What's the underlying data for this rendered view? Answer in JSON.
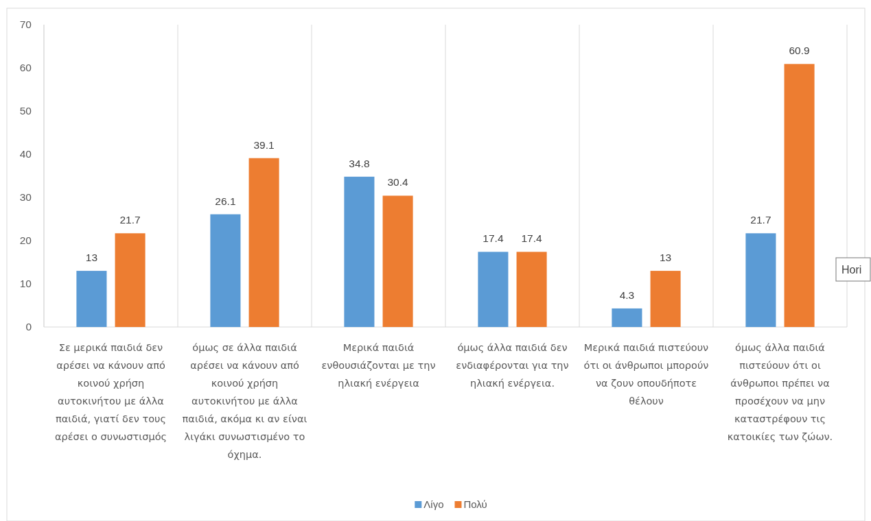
{
  "chart_data": {
    "type": "bar",
    "categories": [
      "Σε μερικά παιδιά δεν αρέσει να κάνουν από κοινού χρήση αυτοκινήτου με άλλα παιδιά, γιατί δεν τους αρέσει ο συνωστισμός",
      "όμως σε άλλα παιδιά αρέσει να κάνουν από κοινού χρήση αυτοκινήτου με άλλα παιδιά, ακόμα κι αν είναι λιγάκι συνωστισμένο το όχημα.",
      "Μερικά παιδιά ενθουσιάζονται με την ηλιακή ενέργεια",
      "όμως άλλα παιδιά δεν ενδιαφέρονται για την ηλιακή ενέργεια.",
      "Μερικά παιδιά πιστεύουν ότι οι άνθρωποι μπορούν να ζουν οπουδήποτε θέλουν",
      "όμως άλλα παιδιά πιστεύουν ότι οι άνθρωποι πρέπει να προσέχουν να μην καταστρέφουν τις κατοικίες των ζώων."
    ],
    "series": [
      {
        "name": "Λίγο",
        "color": "#5b9bd5",
        "values": [
          13,
          26.1,
          34.8,
          17.4,
          4.3,
          21.7
        ]
      },
      {
        "name": "Πολύ",
        "color": "#ed7d31",
        "values": [
          21.7,
          39.1,
          30.4,
          17.4,
          13,
          60.9
        ]
      }
    ],
    "ylim": [
      0,
      70
    ],
    "yticks": [
      0,
      10,
      20,
      30,
      40,
      50,
      60,
      70
    ],
    "grid": "x",
    "legend": "bottom",
    "data_labels": true,
    "annotations": [
      "Hori"
    ]
  }
}
